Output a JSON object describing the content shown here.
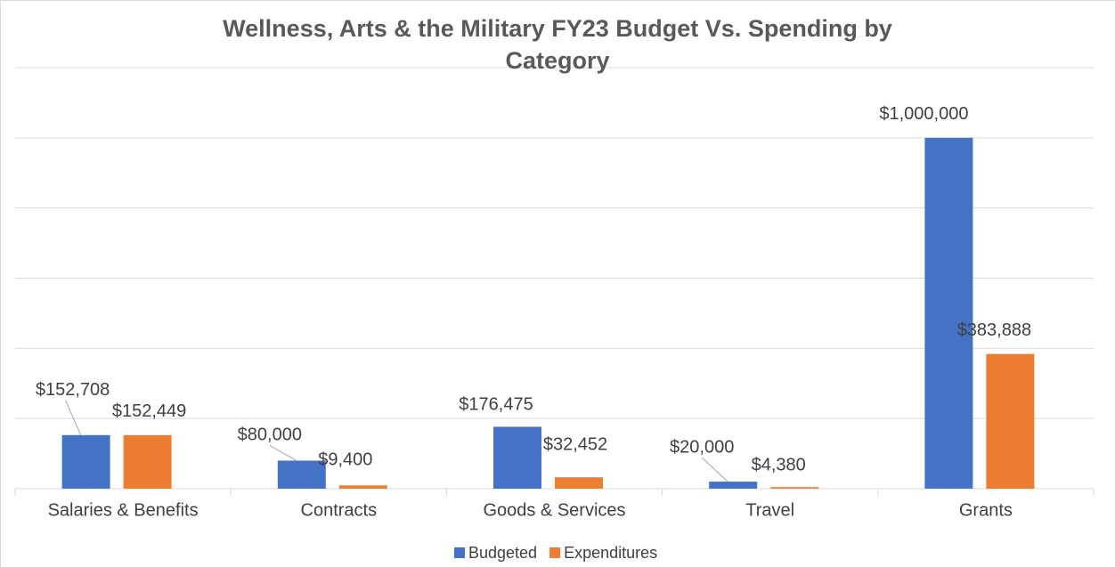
{
  "chart_data": {
    "type": "bar",
    "title": "Wellness, Arts & the Military FY23 Budget Vs. Spending by Category",
    "categories": [
      "Salaries & Benefits",
      "Contracts",
      "Goods & Services",
      "Travel",
      "Grants"
    ],
    "series": [
      {
        "name": "Budgeted",
        "color": "#4472c4",
        "values": [
          152708,
          80000,
          176475,
          20000,
          1000000
        ],
        "value_labels": [
          "$152,708",
          "$80,000",
          "$176,475",
          "$20,000",
          "$1,000,000"
        ]
      },
      {
        "name": "Expenditures",
        "color": "#ed7d31",
        "values": [
          152449,
          9400,
          32452,
          4380,
          383888
        ],
        "value_labels": [
          "$152,449",
          "$9,400",
          "$32,452",
          "$4,380",
          "$383,888"
        ]
      }
    ],
    "ylim": [
      0,
      1200000
    ],
    "yticks": [
      0,
      200000,
      400000,
      600000,
      800000,
      1000000,
      1200000
    ],
    "grid": true,
    "legend": "bottom"
  }
}
